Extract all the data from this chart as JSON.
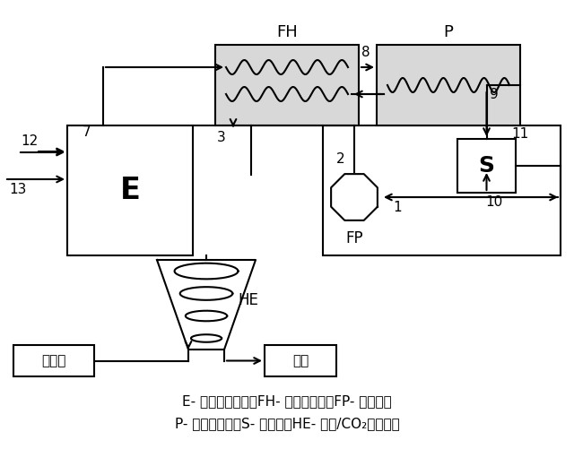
{
  "legend_line1": "E- 往复式发动机；FH- 给水加热器；FP- 给水泵；",
  "legend_line2": "P- 过程加热器；S- 分离器；HE- 液氧/CO₂热交换器",
  "E_label": "E",
  "FH_label": "FH",
  "P_label": "P",
  "S_label": "S",
  "FP_label": "FP",
  "HE_label": "HE",
  "lox_label": "液态氧",
  "ice_label": "干冰",
  "node_labels": [
    "7",
    "3",
    "8",
    "9",
    "11",
    "10",
    "2",
    "1",
    "12",
    "13"
  ]
}
